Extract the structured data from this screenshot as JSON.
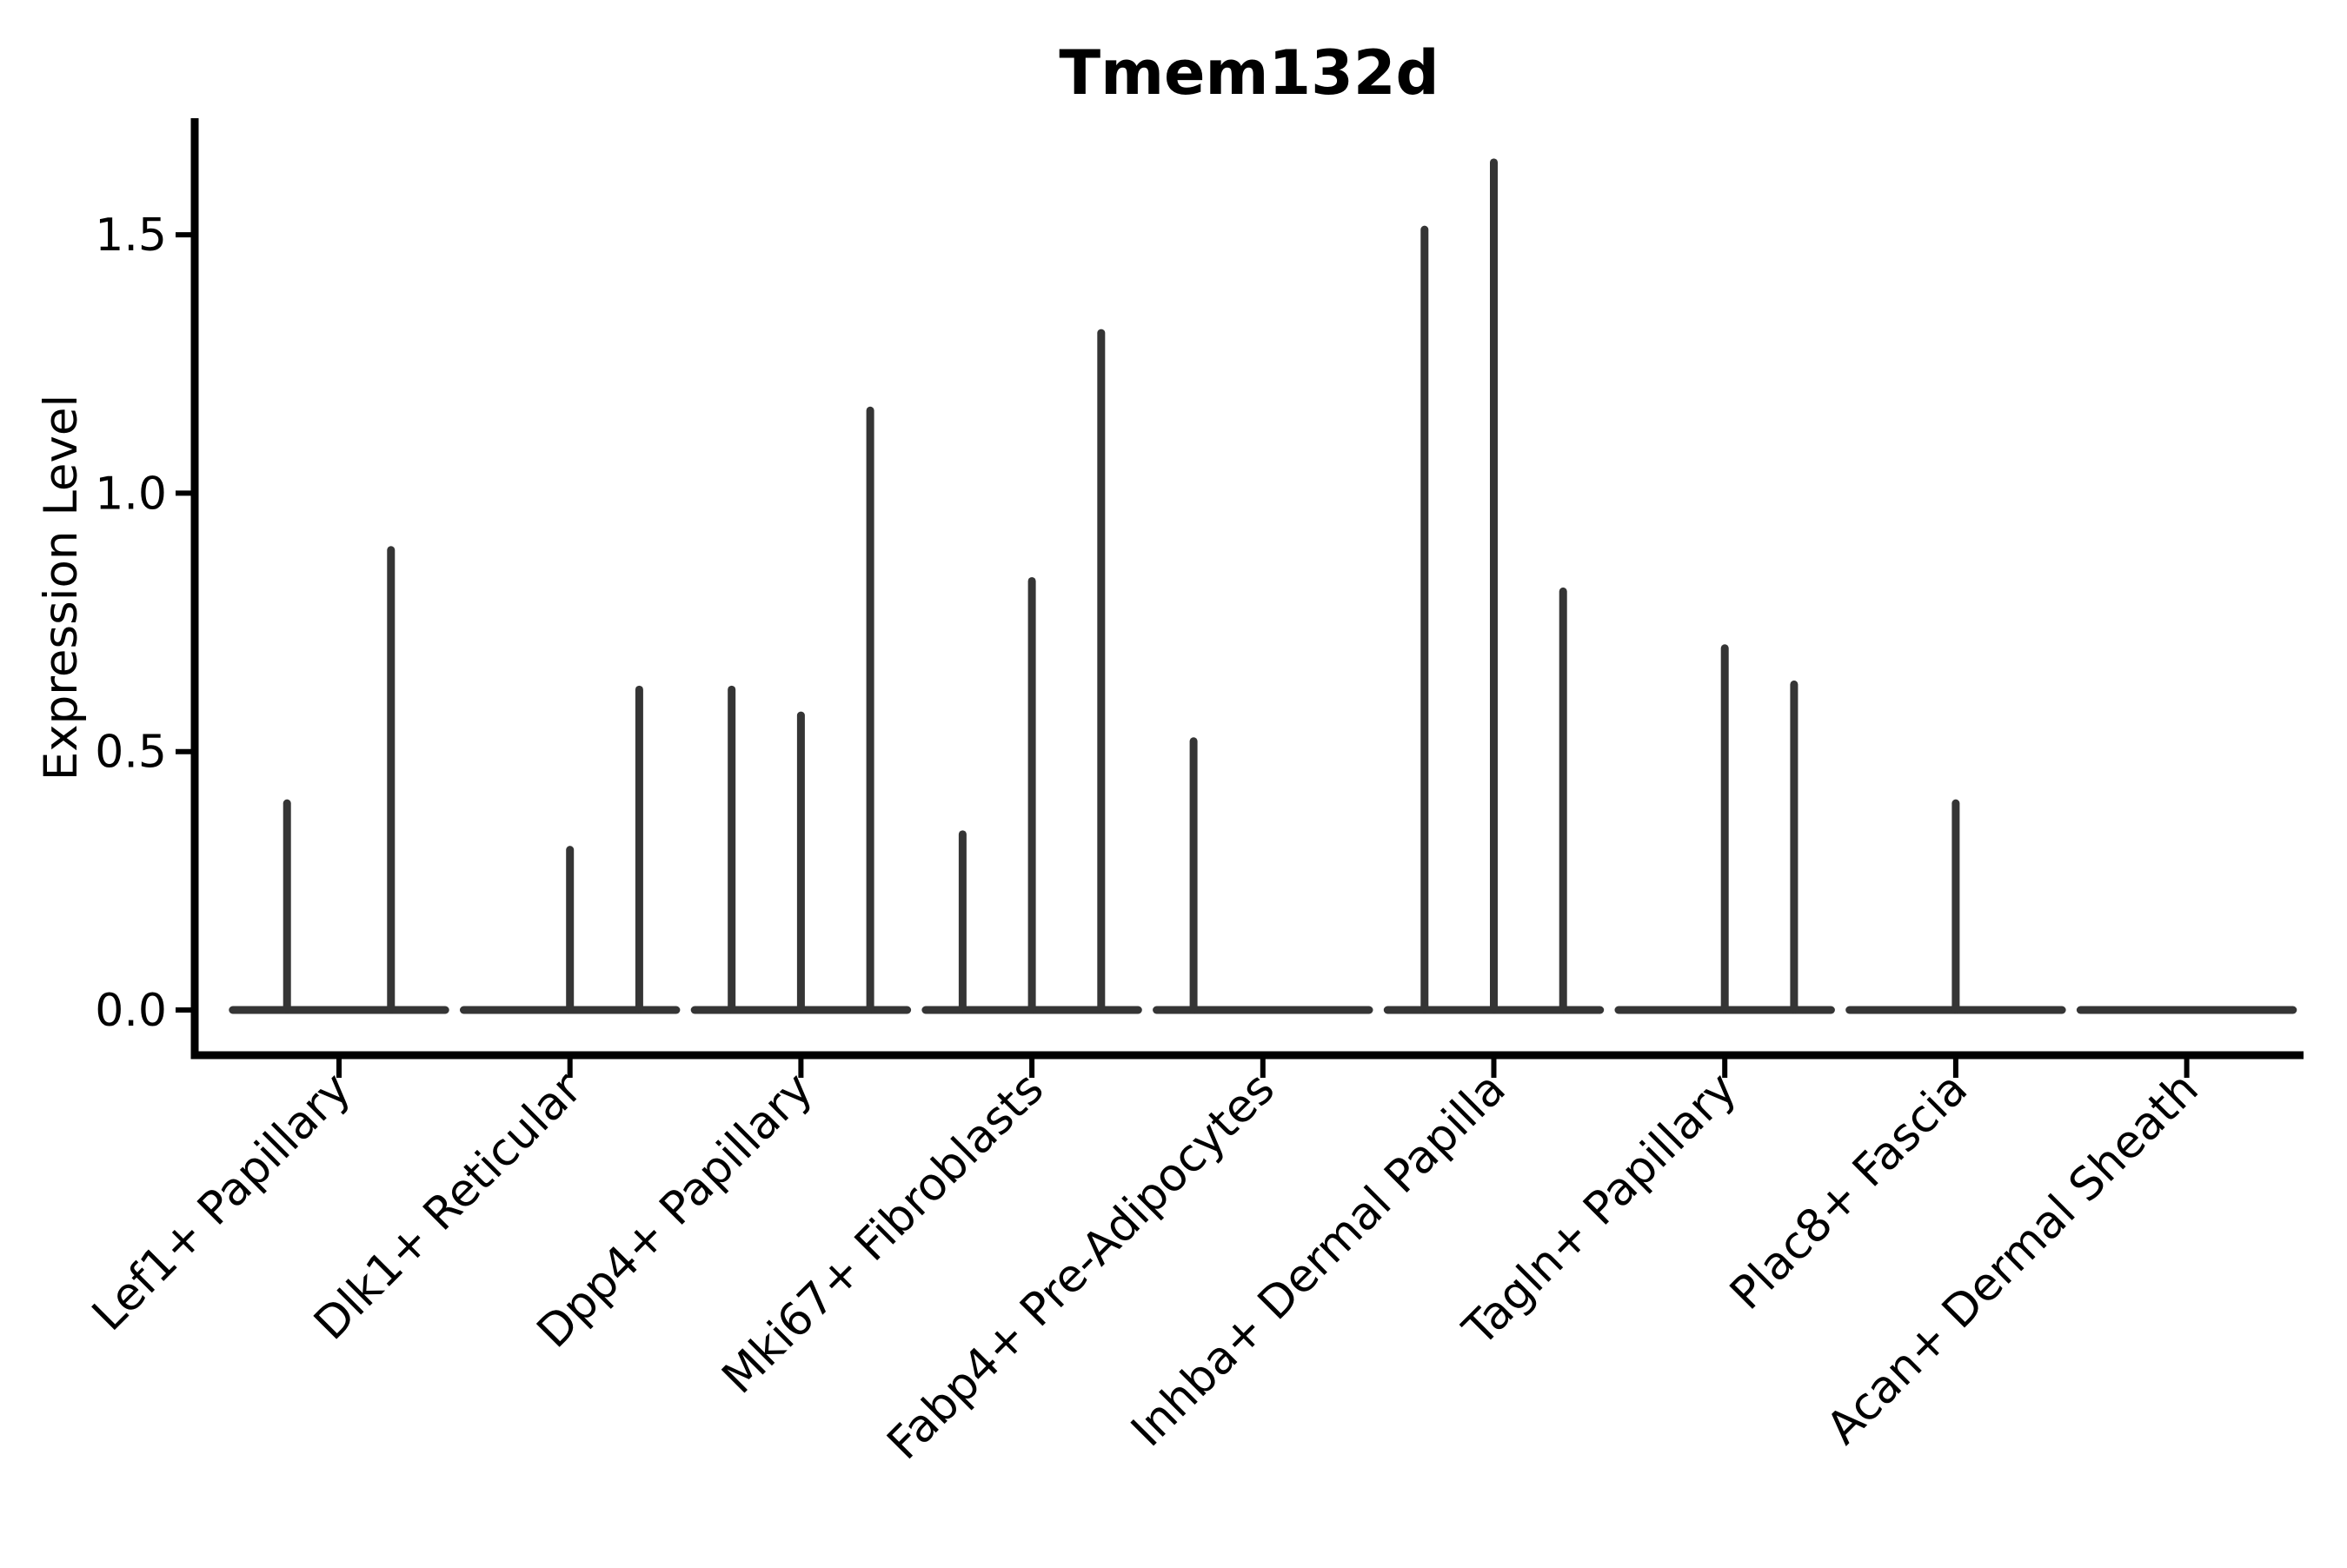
{
  "figure": {
    "background": "#ffffff"
  },
  "colors": {
    "spine": "#000000",
    "violin": "#353535",
    "text": "#000000"
  },
  "chart_data": {
    "type": "violin",
    "title": "Tmem132d",
    "xlabel": "",
    "ylabel": "Expression Level",
    "yticks": [
      0.0,
      0.5,
      1.0,
      1.5
    ],
    "ytick_labels": [
      "0.0",
      "0.5",
      "1.0",
      "1.5"
    ],
    "ylim": [
      -0.09,
      1.72
    ],
    "grid": false,
    "legend": "none",
    "baseline_halfwidth": 0.46,
    "categories": [
      {
        "label": "Lef1+ Papillary",
        "spikes": [
          {
            "x_offset": -0.225,
            "peak": 0.4
          },
          {
            "x_offset": 0.225,
            "peak": 0.89
          }
        ]
      },
      {
        "label": "Dlk1+ Reticular",
        "spikes": [
          {
            "x_offset": 0.0,
            "peak": 0.31
          },
          {
            "x_offset": 0.3,
            "peak": 0.62
          }
        ]
      },
      {
        "label": "Dpp4+ Papillary",
        "spikes": [
          {
            "x_offset": -0.3,
            "peak": 0.62
          },
          {
            "x_offset": 0.0,
            "peak": 0.57
          },
          {
            "x_offset": 0.3,
            "peak": 1.16
          }
        ]
      },
      {
        "label": "Mki67+ Fibroblasts",
        "spikes": [
          {
            "x_offset": -0.3,
            "peak": 0.34
          },
          {
            "x_offset": 0.0,
            "peak": 0.83
          },
          {
            "x_offset": 0.3,
            "peak": 1.31
          }
        ]
      },
      {
        "label": "Fabp4+ Pre-Adipocytes",
        "spikes": [
          {
            "x_offset": -0.3,
            "peak": 0.52
          }
        ]
      },
      {
        "label": "Inhba+ Dermal Papilla",
        "spikes": [
          {
            "x_offset": -0.3,
            "peak": 1.51
          },
          {
            "x_offset": 0.0,
            "peak": 1.64
          },
          {
            "x_offset": 0.3,
            "peak": 0.81
          }
        ]
      },
      {
        "label": "Tagln+ Papillary",
        "spikes": [
          {
            "x_offset": 0.0,
            "peak": 0.7
          },
          {
            "x_offset": 0.3,
            "peak": 0.63
          }
        ]
      },
      {
        "label": "Plac8+ Fascia",
        "spikes": [
          {
            "x_offset": 0.0,
            "peak": 0.4
          }
        ]
      },
      {
        "label": "Acan+ Dermal Sheath",
        "spikes": []
      }
    ]
  }
}
